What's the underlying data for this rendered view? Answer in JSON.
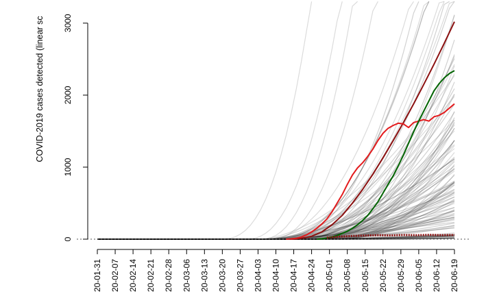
{
  "chart_data": {
    "type": "line",
    "ylabel": "COVID-2019 cases detected (linear sc",
    "y_ticks": [
      0,
      1000,
      2000,
      3000
    ],
    "ylim": [
      0,
      3150
    ],
    "x_ticks": [
      "20-01-31",
      "20-02-07",
      "20-02-14",
      "20-02-21",
      "20-02-28",
      "20-03-06",
      "20-03-13",
      "20-03-20",
      "20-03-27",
      "20-04-03",
      "20-04-10",
      "20-04-17",
      "20-04-24",
      "20-05-01",
      "20-05-08",
      "20-05-15",
      "20-05-22",
      "20-05-29",
      "20-06-05",
      "20-06-12",
      "20-06-19"
    ],
    "x_range_days": [
      0,
      140
    ],
    "grid": false,
    "legend": "none",
    "series": [
      {
        "color": "#8b1010",
        "x": [
          76,
          80,
          84,
          88,
          92,
          96,
          100,
          104,
          108,
          112,
          116,
          120,
          124,
          128,
          132,
          136,
          140
        ],
        "values": [
          0,
          10,
          40,
          100,
          200,
          330,
          500,
          690,
          900,
          1130,
          1370,
          1620,
          1880,
          2150,
          2430,
          2720,
          3020
        ]
      },
      {
        "color": "#e31a1c",
        "x": [
          74,
          76,
          78,
          80,
          82,
          84,
          86,
          88,
          90,
          92,
          94,
          96,
          98,
          100,
          102,
          104,
          106,
          108,
          110,
          112,
          114,
          116,
          118,
          120,
          122,
          124,
          126,
          128,
          130,
          132,
          134,
          136,
          138,
          140
        ],
        "values": [
          0,
          5,
          12,
          30,
          60,
          100,
          150,
          210,
          280,
          380,
          500,
          620,
          760,
          890,
          990,
          1060,
          1150,
          1250,
          1370,
          1470,
          1540,
          1580,
          1610,
          1600,
          1550,
          1620,
          1640,
          1660,
          1640,
          1700,
          1720,
          1760,
          1820,
          1880
        ]
      },
      {
        "color": "#006400",
        "x": [
          86,
          88,
          90,
          92,
          94,
          96,
          98,
          100,
          102,
          104,
          106,
          108,
          110,
          112,
          114,
          116,
          118,
          120,
          122,
          124,
          126,
          128,
          130,
          132,
          134,
          136,
          138,
          140
        ],
        "values": [
          0,
          5,
          15,
          30,
          50,
          80,
          110,
          150,
          200,
          260,
          330,
          420,
          520,
          640,
          760,
          880,
          1020,
          1170,
          1330,
          1490,
          1640,
          1780,
          1920,
          2060,
          2160,
          2240,
          2300,
          2340
        ]
      },
      {
        "color": "#8b1010",
        "x": [
          90,
          95,
          100,
          105,
          110,
          115,
          120,
          125,
          130,
          135,
          140
        ],
        "values": [
          20,
          35,
          45,
          50,
          55,
          52,
          58,
          55,
          60,
          56,
          58
        ]
      }
    ]
  }
}
